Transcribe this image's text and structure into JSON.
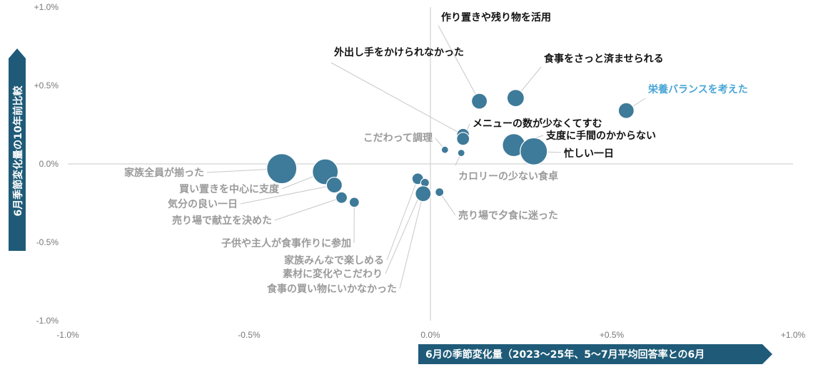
{
  "chart_data": {
    "type": "scatter",
    "xlabel": "6月の季節変化量（2023〜25年、5〜7月平均回答率との6月",
    "ylabel": "6月季節変化量の10年前比較",
    "xlim": [
      -1.0,
      1.0
    ],
    "ylim": [
      -1.0,
      1.0
    ],
    "x_ticks": [
      "-1.0%",
      "-0.5%",
      "0.0%",
      "+0.5%",
      "+1.0%"
    ],
    "y_ticks": [
      "+1.0%",
      "+0.5%",
      "0.0%",
      "-0.5%",
      "-1.0%"
    ],
    "colors": {
      "bubble": "#3e7a99",
      "accent_label": "#4aa6d6",
      "dark_label": "#111111",
      "gray_label": "#9a9a9a",
      "axis_box": "#1f5b78"
    },
    "points": [
      {
        "label": "作り置きや残り物を活用",
        "x": 0.135,
        "y": 0.4,
        "size": 11,
        "style": "dark"
      },
      {
        "label": "外出し手をかけられなかった",
        "x": 0.09,
        "y": 0.185,
        "size": 9,
        "style": "dark"
      },
      {
        "label": "食事をさっと済ませられる",
        "x": 0.235,
        "y": 0.42,
        "size": 12,
        "style": "dark"
      },
      {
        "label": "栄養バランスを考えた",
        "x": 0.54,
        "y": 0.34,
        "size": 11,
        "style": "accent"
      },
      {
        "label": "メニューの数が少なくてすむ",
        "x": 0.09,
        "y": 0.16,
        "size": 9,
        "style": "dark"
      },
      {
        "label": "支度に手間のかからない",
        "x": 0.23,
        "y": 0.12,
        "size": 16,
        "style": "dark"
      },
      {
        "label": "忙しい一日",
        "x": 0.285,
        "y": 0.08,
        "size": 19,
        "style": "dark"
      },
      {
        "label": "こだわって調理",
        "x": 0.04,
        "y": 0.09,
        "size": 5,
        "style": "gray"
      },
      {
        "label": "カロリーの少ない食卓",
        "x": 0.085,
        "y": 0.07,
        "size": 5,
        "style": "gray"
      },
      {
        "label": "家族全員が揃った",
        "x": -0.41,
        "y": -0.03,
        "size": 21,
        "style": "gray"
      },
      {
        "label": "買い置きを中心に支度",
        "x": -0.29,
        "y": -0.05,
        "size": 18,
        "style": "gray"
      },
      {
        "label": "気分の良い一日",
        "x": -0.265,
        "y": -0.135,
        "size": 11,
        "style": "gray"
      },
      {
        "label": "売り場で献立を決めた",
        "x": -0.245,
        "y": -0.215,
        "size": 8,
        "style": "gray"
      },
      {
        "label": "子供や主人が食事作りに参加",
        "x": -0.21,
        "y": -0.245,
        "size": 7,
        "style": "gray"
      },
      {
        "label": "家族みんなで楽しめる",
        "x": -0.035,
        "y": -0.095,
        "size": 8,
        "style": "gray"
      },
      {
        "label": "素材に変化やこだわり",
        "x": -0.015,
        "y": -0.12,
        "size": 6,
        "style": "gray"
      },
      {
        "label": "食事の買い物にいかなかった",
        "x": -0.02,
        "y": -0.19,
        "size": 11,
        "style": "gray"
      },
      {
        "label": "売り場で夕食に迷った",
        "x": 0.025,
        "y": -0.18,
        "size": 6,
        "style": "gray"
      }
    ]
  }
}
